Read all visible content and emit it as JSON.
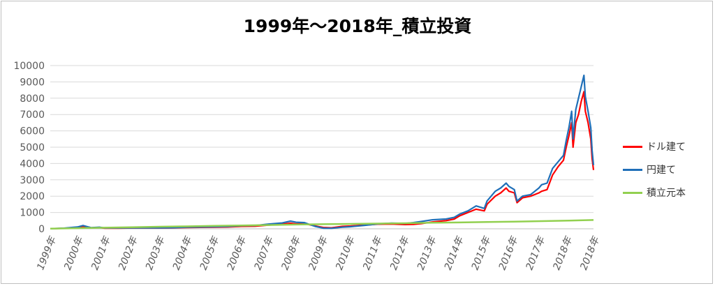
{
  "chart_data": {
    "type": "line",
    "title": "1999年～2018年_積立投資",
    "xlabel": "",
    "ylabel": "",
    "ylim": [
      0,
      10000
    ],
    "yticks": [
      0,
      1000,
      2000,
      3000,
      4000,
      5000,
      6000,
      7000,
      8000,
      9000,
      10000
    ],
    "xlim": [
      1999.0,
      2018.9
    ],
    "xticks": [
      "1999年",
      "2000年",
      "2001年",
      "2002年",
      "2003年",
      "2004年",
      "2005年",
      "2006年",
      "2007年",
      "2008年",
      "2009年",
      "2010年",
      "2011年",
      "2012年",
      "2013年",
      "2014年",
      "2015年",
      "2016年",
      "2017年",
      "2018年",
      "2018年"
    ],
    "grid": "horizontal",
    "legend_position": "right",
    "series": [
      {
        "name": "ドル建て",
        "color": "#ff0000",
        "points": [
          [
            1999.0,
            10
          ],
          [
            1999.5,
            30
          ],
          [
            2000.0,
            90
          ],
          [
            2000.2,
            140
          ],
          [
            2000.5,
            60
          ],
          [
            2000.8,
            80
          ],
          [
            2001.0,
            40
          ],
          [
            2001.5,
            40
          ],
          [
            2002.0,
            50
          ],
          [
            2002.5,
            50
          ],
          [
            2003.0,
            50
          ],
          [
            2003.5,
            60
          ],
          [
            2004.0,
            80
          ],
          [
            2004.5,
            90
          ],
          [
            2005.0,
            100
          ],
          [
            2005.5,
            110
          ],
          [
            2006.0,
            150
          ],
          [
            2006.5,
            160
          ],
          [
            2007.0,
            230
          ],
          [
            2007.5,
            280
          ],
          [
            2007.8,
            340
          ],
          [
            2008.0,
            300
          ],
          [
            2008.3,
            320
          ],
          [
            2008.7,
            180
          ],
          [
            2009.0,
            80
          ],
          [
            2009.3,
            60
          ],
          [
            2009.7,
            150
          ],
          [
            2010.0,
            170
          ],
          [
            2010.5,
            230
          ],
          [
            2011.0,
            280
          ],
          [
            2011.5,
            290
          ],
          [
            2012.0,
            260
          ],
          [
            2012.3,
            270
          ],
          [
            2012.6,
            320
          ],
          [
            2013.0,
            420
          ],
          [
            2013.5,
            500
          ],
          [
            2013.8,
            600
          ],
          [
            2014.0,
            800
          ],
          [
            2014.3,
            1000
          ],
          [
            2014.6,
            1200
          ],
          [
            2014.9,
            1100
          ],
          [
            2015.0,
            1500
          ],
          [
            2015.3,
            2000
          ],
          [
            2015.5,
            2200
          ],
          [
            2015.7,
            2500
          ],
          [
            2015.8,
            2300
          ],
          [
            2016.0,
            2200
          ],
          [
            2016.1,
            1600
          ],
          [
            2016.3,
            1900
          ],
          [
            2016.6,
            2000
          ],
          [
            2016.9,
            2200
          ],
          [
            2017.0,
            2300
          ],
          [
            2017.2,
            2400
          ],
          [
            2017.4,
            3300
          ],
          [
            2017.6,
            3800
          ],
          [
            2017.8,
            4200
          ],
          [
            2017.9,
            5000
          ],
          [
            2018.0,
            5700
          ],
          [
            2018.1,
            6500
          ],
          [
            2018.15,
            5000
          ],
          [
            2018.25,
            6500
          ],
          [
            2018.35,
            7000
          ],
          [
            2018.45,
            7800
          ],
          [
            2018.55,
            8400
          ],
          [
            2018.6,
            7200
          ],
          [
            2018.7,
            6500
          ],
          [
            2018.8,
            5500
          ],
          [
            2018.85,
            4300
          ],
          [
            2018.9,
            3600
          ]
        ]
      },
      {
        "name": "円建て",
        "color": "#1f6fb8",
        "points": [
          [
            1999.0,
            10
          ],
          [
            1999.5,
            40
          ],
          [
            2000.0,
            110
          ],
          [
            2000.2,
            200
          ],
          [
            2000.5,
            70
          ],
          [
            2000.8,
            100
          ],
          [
            2001.0,
            50
          ],
          [
            2001.5,
            50
          ],
          [
            2002.0,
            60
          ],
          [
            2002.5,
            60
          ],
          [
            2003.0,
            60
          ],
          [
            2003.5,
            70
          ],
          [
            2004.0,
            100
          ],
          [
            2004.5,
            110
          ],
          [
            2005.0,
            130
          ],
          [
            2005.5,
            140
          ],
          [
            2006.0,
            190
          ],
          [
            2006.5,
            200
          ],
          [
            2007.0,
            290
          ],
          [
            2007.5,
            360
          ],
          [
            2007.8,
            470
          ],
          [
            2008.0,
            400
          ],
          [
            2008.3,
            380
          ],
          [
            2008.7,
            150
          ],
          [
            2009.0,
            40
          ],
          [
            2009.3,
            30
          ],
          [
            2009.7,
            100
          ],
          [
            2010.0,
            130
          ],
          [
            2010.5,
            210
          ],
          [
            2011.0,
            300
          ],
          [
            2011.5,
            350
          ],
          [
            2012.0,
            330
          ],
          [
            2012.3,
            380
          ],
          [
            2012.6,
            450
          ],
          [
            2013.0,
            550
          ],
          [
            2013.5,
            600
          ],
          [
            2013.8,
            700
          ],
          [
            2014.0,
            900
          ],
          [
            2014.3,
            1100
          ],
          [
            2014.6,
            1400
          ],
          [
            2014.9,
            1250
          ],
          [
            2015.0,
            1700
          ],
          [
            2015.3,
            2300
          ],
          [
            2015.5,
            2500
          ],
          [
            2015.7,
            2800
          ],
          [
            2015.8,
            2600
          ],
          [
            2016.0,
            2400
          ],
          [
            2016.1,
            1700
          ],
          [
            2016.3,
            2000
          ],
          [
            2016.6,
            2100
          ],
          [
            2016.9,
            2500
          ],
          [
            2017.0,
            2700
          ],
          [
            2017.2,
            2800
          ],
          [
            2017.4,
            3700
          ],
          [
            2017.6,
            4100
          ],
          [
            2017.8,
            4500
          ],
          [
            2017.9,
            5400
          ],
          [
            2018.0,
            6200
          ],
          [
            2018.1,
            7200
          ],
          [
            2018.15,
            5500
          ],
          [
            2018.25,
            7300
          ],
          [
            2018.35,
            8000
          ],
          [
            2018.45,
            8700
          ],
          [
            2018.55,
            9400
          ],
          [
            2018.6,
            8100
          ],
          [
            2018.7,
            7200
          ],
          [
            2018.8,
            6200
          ],
          [
            2018.85,
            4800
          ],
          [
            2018.9,
            3900
          ]
        ]
      },
      {
        "name": "積立元本",
        "color": "#92d050",
        "points": [
          [
            1999.0,
            10
          ],
          [
            2000.0,
            40
          ],
          [
            2001.0,
            70
          ],
          [
            2002.0,
            100
          ],
          [
            2003.0,
            130
          ],
          [
            2004.0,
            150
          ],
          [
            2005.0,
            180
          ],
          [
            2006.0,
            200
          ],
          [
            2007.0,
            230
          ],
          [
            2008.0,
            260
          ],
          [
            2009.0,
            280
          ],
          [
            2010.0,
            300
          ],
          [
            2011.0,
            320
          ],
          [
            2012.0,
            340
          ],
          [
            2013.0,
            370
          ],
          [
            2014.0,
            390
          ],
          [
            2015.0,
            420
          ],
          [
            2016.0,
            440
          ],
          [
            2017.0,
            470
          ],
          [
            2018.0,
            500
          ],
          [
            2018.9,
            540
          ]
        ]
      }
    ]
  }
}
